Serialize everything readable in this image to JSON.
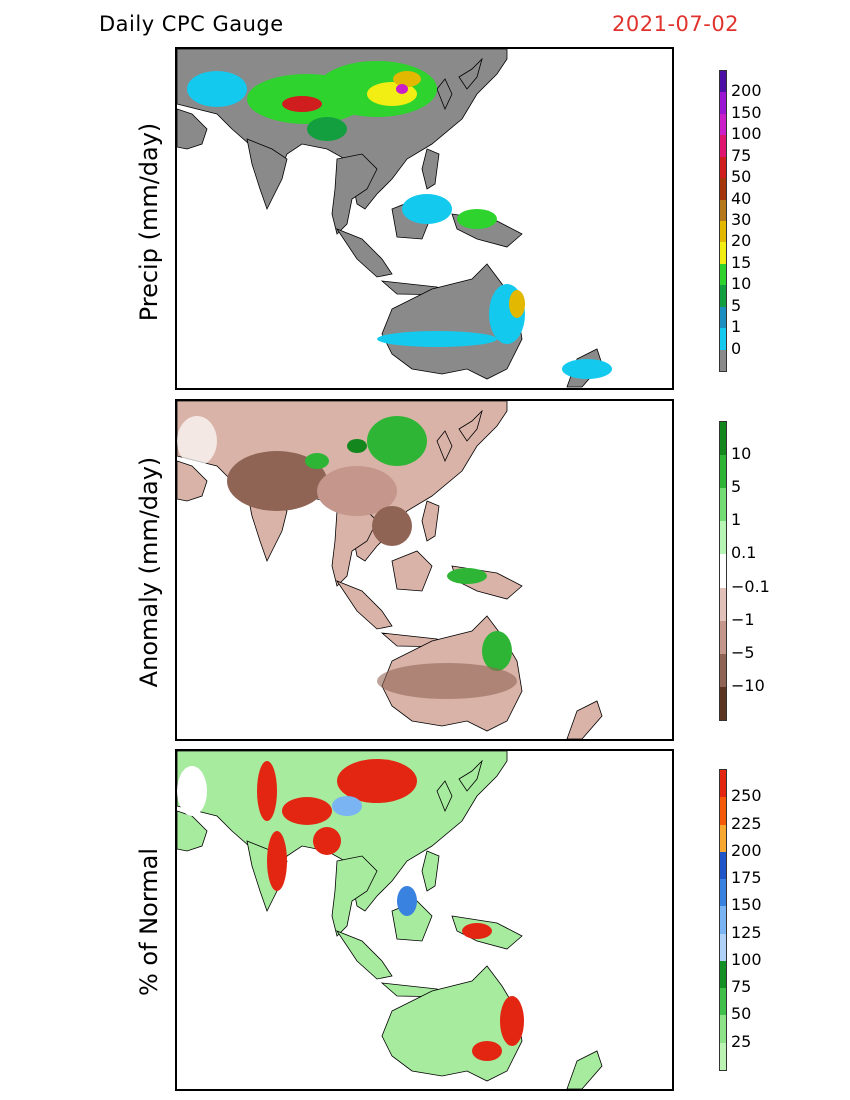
{
  "header": {
    "title": "Daily CPC Gauge",
    "date": "2021-07-02"
  },
  "panels": [
    {
      "ylabel": "Precip (mm/day)",
      "colorbar": {
        "labels": [
          "200",
          "150",
          "100",
          "75",
          "50",
          "40",
          "30",
          "20",
          "15",
          "10",
          "5",
          "1",
          "0"
        ],
        "colors": [
          "#4b0fa6",
          "#9b16d2",
          "#c91ec8",
          "#e0156f",
          "#d01e1e",
          "#a5360c",
          "#b4781a",
          "#e2b800",
          "#f2ee14",
          "#2ed32e",
          "#139f3f",
          "#1c8fc0",
          "#14c9ee",
          "#8a8a8a"
        ]
      }
    },
    {
      "ylabel": "Anomaly (mm/day)",
      "colorbar": {
        "labels": [
          "10",
          "5",
          "1",
          "0.1",
          "−0.1",
          "−1",
          "−5",
          "−10"
        ],
        "colors": [
          "#13871e",
          "#2fb536",
          "#73dc74",
          "#b6f5b3",
          "#ffffff",
          "#e1c1b9",
          "#c4968c",
          "#8f6454",
          "#5b3422"
        ]
      }
    },
    {
      "ylabel": "% of Normal",
      "colorbar": {
        "labels": [
          "250",
          "225",
          "200",
          "175",
          "150",
          "125",
          "100",
          "75",
          "50",
          "25"
        ],
        "colors": [
          "#e32612",
          "#f45a0a",
          "#f8a831",
          "#1f55c8",
          "#3a82e0",
          "#7ab4f2",
          "#b0d2f8",
          "#138f25",
          "#40c04a",
          "#8ee389",
          "#baf3b2"
        ]
      }
    }
  ]
}
